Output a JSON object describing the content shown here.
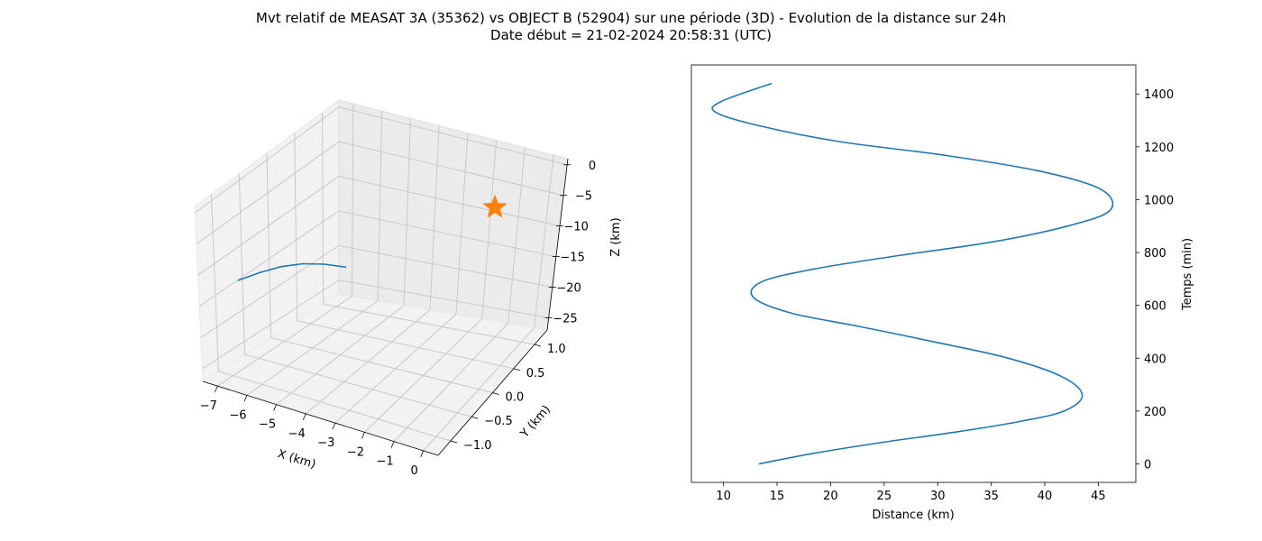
{
  "figure": {
    "title_line1": "Mvt relatif de MEASAT 3A (35362) vs OBJECT B (52904) sur une période (3D) - Evolution de la distance sur 24h",
    "title_line2": "Date début = 21-02-2024 20:58:31 (UTC)"
  },
  "chart_data": [
    {
      "type": "line",
      "projection": "3d",
      "xlabel": "X (km)",
      "ylabel": "Y (km)",
      "zlabel": "Z (km)",
      "x_ticks": [
        "−7",
        "−6",
        "−5",
        "−4",
        "−3",
        "−2",
        "−1",
        "0"
      ],
      "y_ticks": [
        "−1.0",
        "−0.5",
        "0.0",
        "0.5",
        "1.0"
      ],
      "z_ticks": [
        "0",
        "−5",
        "−10",
        "−15",
        "−20",
        "−25"
      ],
      "xlim": [
        -7.5,
        0.5
      ],
      "ylim": [
        -1.3,
        1.3
      ],
      "zlim": [
        -27,
        1
      ],
      "grid": true,
      "series": [
        {
          "color": "#1f77b4",
          "x": [
            -7.0,
            -6.3,
            -5.6,
            -4.9,
            -4.2,
            -3.6
          ],
          "y": [
            0.0,
            0.25,
            0.45,
            0.6,
            0.7,
            0.75
          ],
          "z": [
            -20.5,
            -20.0,
            -19.5,
            -19.2,
            -19.0,
            -18.9
          ]
        }
      ],
      "marker": {
        "shape": "star",
        "color": "#ff7f0e",
        "x": 0,
        "y": 0,
        "z": 0
      }
    },
    {
      "type": "line",
      "xlabel": "Distance (km)",
      "ylabel": "Temps (min)",
      "x_ticks": [
        "10",
        "15",
        "20",
        "25",
        "30",
        "35",
        "40",
        "45"
      ],
      "y_ticks": [
        "0",
        "200",
        "400",
        "600",
        "800",
        "1000",
        "1200",
        "1400"
      ],
      "xlim": [
        7,
        48.5
      ],
      "ylim": [
        -70,
        1510
      ],
      "y_axis_position": "right",
      "grid": false,
      "series": [
        {
          "color": "#1f77b4",
          "x": [
            13.3,
            18.4,
            24.6,
            31.6,
            37.6,
            41.8,
            43.5,
            41.6,
            36.6,
            29.9,
            22.7,
            16.4,
            12.8,
            13.6,
            18.8,
            26.6,
            35.1,
            42.1,
            46.1,
            45.2,
            39.3,
            30.3,
            20.8,
            13.3,
            9.3,
            9.7,
            14.5
          ],
          "y": [
            0,
            40,
            80,
            120,
            160,
            200,
            260,
            330,
            400,
            460,
            520,
            570,
            630,
            690,
            740,
            790,
            840,
            900,
            960,
            1040,
            1110,
            1170,
            1220,
            1280,
            1330,
            1370,
            1440
          ]
        }
      ]
    }
  ]
}
